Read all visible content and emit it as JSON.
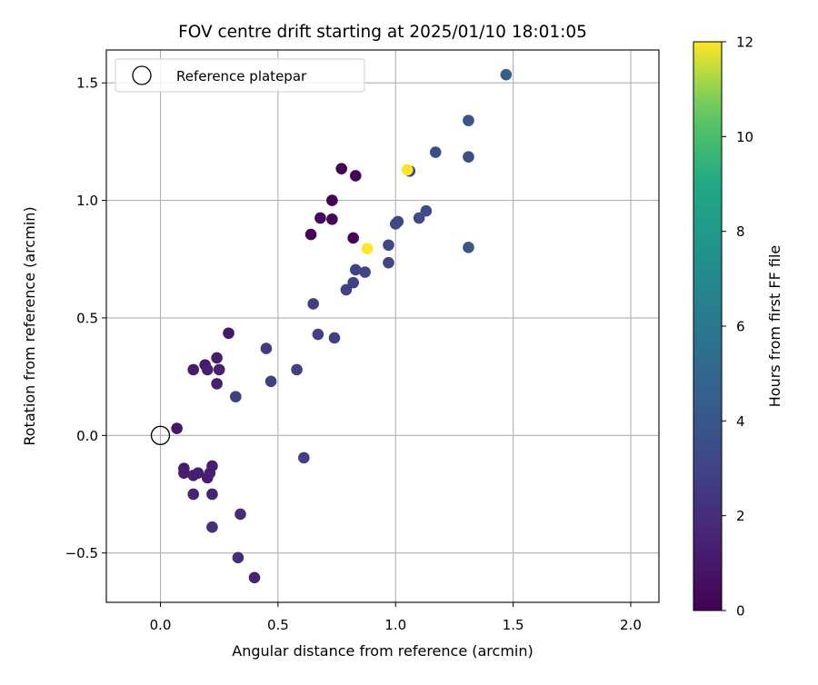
{
  "chart_data": {
    "type": "scatter",
    "title": "FOV centre drift starting at 2025/01/10 18:01:05",
    "xlabel": "Angular distance from reference (arcmin)",
    "ylabel": "Rotation from reference (arcmin)",
    "xlim": [
      -0.23,
      2.12
    ],
    "ylim": [
      -0.71,
      1.64
    ],
    "xticks": [
      0.0,
      0.5,
      1.0,
      1.5,
      2.0
    ],
    "xtick_labels": [
      "0.0",
      "0.5",
      "1.0",
      "1.5",
      "2.0"
    ],
    "yticks": [
      -0.5,
      0.0,
      0.5,
      1.0,
      1.5
    ],
    "ytick_labels": [
      "−0.5",
      "0.0",
      "0.5",
      "1.0",
      "1.5"
    ],
    "grid": true,
    "legend": {
      "position": "top-left",
      "entries": [
        "Reference platepar"
      ]
    },
    "reference_point": {
      "x": 0.0,
      "y": 0.0
    },
    "colorbar": {
      "label": "Hours from first FF file",
      "range": [
        0,
        12
      ],
      "ticks": [
        0,
        2,
        4,
        6,
        8,
        10,
        12
      ],
      "colormap": "viridis"
    },
    "points": [
      {
        "x": 0.07,
        "y": 0.03,
        "h": 0.9
      },
      {
        "x": 0.1,
        "y": -0.14,
        "h": 1.2
      },
      {
        "x": 0.1,
        "y": -0.16,
        "h": 1.2
      },
      {
        "x": 0.14,
        "y": -0.17,
        "h": 1.3
      },
      {
        "x": 0.16,
        "y": -0.16,
        "h": 1.3
      },
      {
        "x": 0.2,
        "y": -0.18,
        "h": 1.1
      },
      {
        "x": 0.22,
        "y": -0.13,
        "h": 1.2
      },
      {
        "x": 0.21,
        "y": -0.16,
        "h": 1.3
      },
      {
        "x": 0.14,
        "y": -0.25,
        "h": 1.5
      },
      {
        "x": 0.22,
        "y": -0.25,
        "h": 1.5
      },
      {
        "x": 0.22,
        "y": -0.39,
        "h": 2.0
      },
      {
        "x": 0.34,
        "y": -0.335,
        "h": 1.9
      },
      {
        "x": 0.33,
        "y": -0.52,
        "h": 1.9
      },
      {
        "x": 0.4,
        "y": -0.605,
        "h": 1.5
      },
      {
        "x": 0.14,
        "y": 0.28,
        "h": 1.2
      },
      {
        "x": 0.19,
        "y": 0.3,
        "h": 1.1
      },
      {
        "x": 0.2,
        "y": 0.28,
        "h": 1.3
      },
      {
        "x": 0.24,
        "y": 0.33,
        "h": 1.2
      },
      {
        "x": 0.25,
        "y": 0.28,
        "h": 1.3
      },
      {
        "x": 0.24,
        "y": 0.22,
        "h": 1.3
      },
      {
        "x": 0.29,
        "y": 0.435,
        "h": 0.9
      },
      {
        "x": 0.32,
        "y": 0.165,
        "h": 2.7
      },
      {
        "x": 0.45,
        "y": 0.37,
        "h": 2.6
      },
      {
        "x": 0.47,
        "y": 0.23,
        "h": 2.8
      },
      {
        "x": 0.58,
        "y": 0.28,
        "h": 2.9
      },
      {
        "x": 0.61,
        "y": -0.095,
        "h": 2.8
      },
      {
        "x": 0.65,
        "y": 0.56,
        "h": 2.8
      },
      {
        "x": 0.67,
        "y": 0.43,
        "h": 2.8
      },
      {
        "x": 0.74,
        "y": 0.415,
        "h": 2.8
      },
      {
        "x": 0.79,
        "y": 0.62,
        "h": 2.9
      },
      {
        "x": 0.82,
        "y": 0.65,
        "h": 2.9
      },
      {
        "x": 0.83,
        "y": 0.705,
        "h": 2.9
      },
      {
        "x": 0.87,
        "y": 0.695,
        "h": 3.0
      },
      {
        "x": 0.97,
        "y": 0.735,
        "h": 3.0
      },
      {
        "x": 0.97,
        "y": 0.81,
        "h": 3.2
      },
      {
        "x": 1.0,
        "y": 0.9,
        "h": 3.5
      },
      {
        "x": 1.01,
        "y": 0.91,
        "h": 3.3
      },
      {
        "x": 1.06,
        "y": 1.125,
        "h": 3.3
      },
      {
        "x": 1.1,
        "y": 0.925,
        "h": 3.5
      },
      {
        "x": 1.13,
        "y": 0.955,
        "h": 3.5
      },
      {
        "x": 1.17,
        "y": 1.205,
        "h": 3.5
      },
      {
        "x": 1.31,
        "y": 1.185,
        "h": 3.5
      },
      {
        "x": 1.31,
        "y": 1.34,
        "h": 4.0
      },
      {
        "x": 1.31,
        "y": 0.8,
        "h": 4.0
      },
      {
        "x": 1.47,
        "y": 1.535,
        "h": 4.5
      },
      {
        "x": 0.64,
        "y": 0.855,
        "h": 0.2
      },
      {
        "x": 0.68,
        "y": 0.925,
        "h": 0.3
      },
      {
        "x": 0.73,
        "y": 0.92,
        "h": 0.2
      },
      {
        "x": 0.73,
        "y": 1.0,
        "h": 0.1
      },
      {
        "x": 0.77,
        "y": 1.135,
        "h": 0.1
      },
      {
        "x": 0.82,
        "y": 0.84,
        "h": 0.2
      },
      {
        "x": 0.83,
        "y": 1.105,
        "h": 0.1
      },
      {
        "x": 0.88,
        "y": 0.795,
        "h": 12.0
      },
      {
        "x": 1.05,
        "y": 1.13,
        "h": 12.0
      }
    ]
  },
  "colors": {
    "grid": "#b0b0b0",
    "axes": "#000000",
    "legend_border": "#cccccc"
  }
}
